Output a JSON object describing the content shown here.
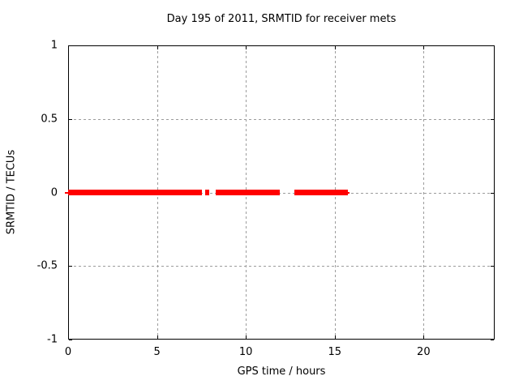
{
  "chart_data": {
    "type": "line",
    "title": "Day 195 of 2011, SRMTID for receiver mets",
    "xlabel": "GPS time / hours",
    "ylabel": "SRMTID / TECUs",
    "xlim": [
      0,
      24
    ],
    "ylim": [
      -1,
      1
    ],
    "grid": true,
    "legend": "none",
    "xticks": [
      {
        "v": 0,
        "label": "0"
      },
      {
        "v": 5,
        "label": "5"
      },
      {
        "v": 10,
        "label": "10"
      },
      {
        "v": 15,
        "label": "15"
      },
      {
        "v": 20,
        "label": "20"
      }
    ],
    "yticks": [
      {
        "v": -1,
        "label": "-1"
      },
      {
        "v": -0.5,
        "label": "-0.5"
      },
      {
        "v": 0,
        "label": "0"
      },
      {
        "v": 0.5,
        "label": "0.5"
      },
      {
        "v": 1,
        "label": "1"
      }
    ],
    "series": [
      {
        "name": "SRMTID",
        "color": "#ff0000",
        "value": 0,
        "band_thickness_units": 0.04,
        "segments_hours": [
          [
            0.0,
            7.55
          ],
          [
            7.7,
            7.95
          ],
          [
            8.3,
            11.9
          ],
          [
            12.75,
            15.75
          ]
        ],
        "thin_segments_hours": [
          [
            -0.2,
            0.05
          ],
          [
            15.7,
            15.85
          ]
        ]
      }
    ],
    "colors": {
      "frame": "#000000",
      "grid": "#9c9c9c",
      "background": "#ffffff",
      "series": "#ff0000"
    }
  }
}
